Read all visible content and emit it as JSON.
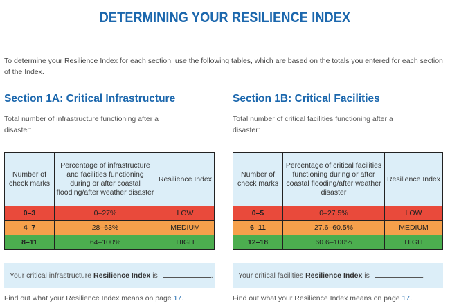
{
  "title": "DETERMINING YOUR RESILIENCE INDEX",
  "intro": "To determine your Resilience Index for each section, use the following tables, which are based on the totals you entered for each section of the Index.",
  "colors": {
    "heading": "#1b67ad",
    "header_bg": "#dceef8",
    "low": "#e94a3b",
    "medium": "#f6a04b",
    "high": "#4cae4f"
  },
  "sections": [
    {
      "title": "Section 1A: Critical Infrastructure",
      "question": "Total number of infrastructure functioning after a disaster:",
      "headers": [
        "Number of check marks",
        "Percentage of infrastructure and facilities functioning during or after coastal flooding/after weather disaster",
        "Resilience Index"
      ],
      "rows": [
        {
          "marks": "0–3",
          "pct": "0–27%",
          "index": "LOW"
        },
        {
          "marks": "4–7",
          "pct": "28–63%",
          "index": "MEDIUM"
        },
        {
          "marks": "8–11",
          "pct": "64–100%",
          "index": "HIGH"
        }
      ],
      "result_pre": "Your critical infrastructure",
      "result_bold": "Resilience Index",
      "result_post": "is",
      "findout_text": "Find out what your Resilience Index means on page",
      "findout_page": "17."
    },
    {
      "title": "Section 1B: Critical Facilities",
      "question": "Total number of critical facilities functioning after a disaster:",
      "headers": [
        "Number of check marks",
        "Percentage of critical facilities functioning during or after coastal flooding/after weather disaster",
        "Resilience Index"
      ],
      "rows": [
        {
          "marks": "0–5",
          "pct": "0–27.5%",
          "index": "LOW"
        },
        {
          "marks": "6–11",
          "pct": "27.6–60.5%",
          "index": "MEDIUM"
        },
        {
          "marks": "12–18",
          "pct": "60.6–100%",
          "index": "HIGH"
        }
      ],
      "result_pre": "Your critical facilities",
      "result_bold": "Resilience Index",
      "result_post": "is",
      "findout_text": "Find out what your Resilience Index means on page",
      "findout_page": "17."
    }
  ]
}
